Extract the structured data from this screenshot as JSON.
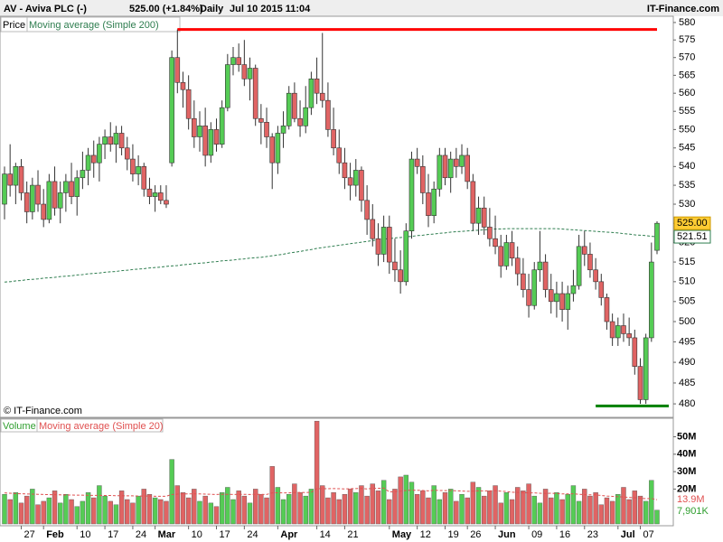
{
  "chart_data": [
    {
      "type": "candlestick",
      "title": "AV - Aviva PLC (-)",
      "quote": "525.00 (+1.84%)",
      "period": "Daily",
      "timestamp": "Jul 10 2015 11:04",
      "source": "IT-Finance.com",
      "copyright": "© IT-Finance.com",
      "price_name": "Price",
      "open": [
        530,
        538,
        535,
        540,
        533,
        528,
        535,
        530,
        526,
        536,
        529,
        533,
        536,
        532,
        537,
        539,
        543,
        541,
        546,
        548,
        546,
        549,
        545,
        542,
        538,
        540,
        534,
        532,
        533,
        531,
        541,
        570,
        563,
        561,
        553,
        548,
        551,
        543,
        550,
        546,
        556,
        568,
        570,
        568,
        564,
        567,
        553,
        552,
        548,
        541,
        549,
        551,
        560,
        553,
        551,
        556,
        564,
        560,
        558,
        550,
        545,
        541,
        537,
        535,
        539,
        531,
        526,
        521,
        517,
        524,
        515,
        513,
        510,
        523,
        542,
        540,
        533,
        527,
        534,
        543,
        537,
        542,
        540,
        543,
        536,
        525,
        529,
        524,
        521,
        519,
        514,
        520,
        516,
        512,
        508,
        504,
        513,
        515,
        508,
        505,
        507,
        503,
        507,
        509,
        519,
        517,
        513,
        510,
        506,
        500,
        496,
        499,
        497,
        496,
        489,
        481,
        496,
        518
      ],
      "high": [
        540,
        546,
        541,
        542,
        536,
        537,
        539,
        534,
        538,
        540,
        536,
        538,
        541,
        539,
        544,
        545,
        547,
        548,
        550,
        552,
        551,
        551,
        548,
        546,
        543,
        541,
        537,
        535,
        535,
        535,
        572,
        578,
        566,
        565,
        558,
        555,
        556,
        552,
        553,
        558,
        571,
        573,
        574,
        575,
        570,
        568,
        557,
        556,
        549,
        551,
        555,
        562,
        563,
        558,
        562,
        566,
        570,
        577,
        563,
        556,
        550,
        545,
        541,
        542,
        540,
        535,
        530,
        525,
        527,
        527,
        521,
        518,
        525,
        544,
        545,
        543,
        538,
        536,
        545,
        545,
        544,
        545,
        546,
        545,
        538,
        532,
        532,
        529,
        527,
        522,
        522,
        523,
        519,
        516,
        512,
        515,
        523,
        517,
        512,
        510,
        510,
        509,
        513,
        522,
        523,
        520,
        516,
        512,
        507,
        502,
        501,
        502,
        501,
        498,
        491,
        497,
        520,
        525.5
      ],
      "low": [
        526,
        532,
        530,
        531,
        525,
        526,
        528,
        524,
        525,
        527,
        525,
        528,
        530,
        527,
        534,
        535,
        537,
        536,
        542,
        544,
        541,
        543,
        539,
        536,
        535,
        532,
        530,
        528,
        530,
        529,
        540,
        560,
        556,
        550,
        545,
        544,
        540,
        541,
        544,
        545,
        555,
        565,
        566,
        562,
        558,
        551,
        546,
        545,
        534,
        538,
        545,
        550,
        552,
        548,
        549,
        554,
        557,
        556,
        548,
        543,
        538,
        534,
        531,
        532,
        528,
        522,
        519,
        514,
        515,
        512,
        510,
        507,
        509,
        521,
        538,
        530,
        524,
        525,
        532,
        535,
        533,
        537,
        538,
        534,
        523,
        522,
        522,
        519,
        517,
        511,
        513,
        514,
        509,
        506,
        501,
        503,
        510,
        506,
        502,
        501,
        500,
        498,
        505,
        508,
        514,
        511,
        508,
        504,
        498,
        494,
        494,
        495,
        494,
        487,
        480,
        480,
        495,
        517
      ],
      "close": [
        538,
        535,
        540,
        533,
        528,
        535,
        530,
        526,
        536,
        529,
        533,
        536,
        532,
        537,
        539,
        543,
        541,
        546,
        548,
        546,
        549,
        545,
        542,
        538,
        540,
        534,
        532,
        533,
        531,
        530,
        570,
        563,
        561,
        553,
        548,
        551,
        543,
        550,
        546,
        556,
        568,
        570,
        568,
        564,
        567,
        553,
        552,
        548,
        541,
        549,
        551,
        560,
        553,
        551,
        556,
        564,
        560,
        558,
        550,
        545,
        541,
        537,
        535,
        539,
        531,
        526,
        521,
        517,
        524,
        515,
        513,
        510,
        523,
        542,
        540,
        533,
        527,
        534,
        543,
        537,
        542,
        540,
        543,
        536,
        525,
        529,
        524,
        521,
        519,
        514,
        520,
        516,
        512,
        508,
        504,
        513,
        515,
        508,
        505,
        507,
        503,
        507,
        509,
        519,
        517,
        513,
        510,
        506,
        500,
        496,
        499,
        497,
        496,
        489,
        481,
        496,
        515,
        525
      ],
      "up_color": "#55cc55",
      "down_color": "#e06464",
      "last_label": "525.00",
      "ylim": [
        476.8,
        581.8
      ],
      "log_scale": true,
      "yticks": [
        480,
        485,
        490,
        495,
        500,
        505,
        510,
        515,
        520,
        525,
        530,
        535,
        540,
        545,
        550,
        555,
        560,
        565,
        570,
        575,
        580
      ],
      "series": [
        {
          "name": "Moving average (Simple 200)",
          "color": "#2e7d4f",
          "value_label": "521.51",
          "values": [
            509.9,
            510.0,
            510.2,
            510.3,
            510.5,
            510.6,
            510.7,
            510.9,
            511.0,
            511.1,
            511.3,
            511.4,
            511.5,
            511.7,
            511.8,
            512.0,
            512.1,
            512.2,
            512.4,
            512.5,
            512.6,
            512.8,
            512.9,
            513.1,
            513.2,
            513.3,
            513.5,
            513.6,
            513.7,
            513.9,
            514.0,
            514.1,
            514.3,
            514.4,
            514.6,
            514.7,
            514.8,
            515.0,
            515.1,
            515.3,
            515.4,
            515.5,
            515.7,
            515.8,
            516.0,
            516.1,
            516.2,
            516.4,
            516.6,
            516.8,
            517.0,
            517.3,
            517.5,
            517.7,
            518.0,
            518.2,
            518.5,
            518.7,
            518.9,
            519.1,
            519.3,
            519.5,
            519.7,
            519.9,
            520.1,
            520.3,
            520.5,
            520.7,
            520.9,
            521.0,
            521.2,
            521.3,
            521.5,
            521.6,
            521.8,
            521.9,
            522.1,
            522.2,
            522.4,
            522.5,
            522.7,
            522.8,
            522.9,
            523.0,
            523.1,
            523.2,
            523.3,
            523.4,
            523.5,
            523.5,
            523.6,
            523.6,
            523.6,
            523.6,
            523.6,
            523.6,
            523.6,
            523.6,
            523.6,
            523.6,
            523.5,
            523.4,
            523.3,
            523.2,
            523.1,
            523.0,
            522.9,
            522.8,
            522.7,
            522.6,
            522.5,
            522.3,
            522.2,
            522.0,
            521.9,
            521.8,
            521.6,
            521.51
          ]
        }
      ],
      "hlines": [
        {
          "value": 578,
          "color": "#ff0000",
          "from": 31
        },
        {
          "value": 479.5,
          "color": "#008000",
          "from": 106
        }
      ]
    },
    {
      "type": "bar",
      "volume_name": "Volume",
      "volume_color": "#2e9e2e",
      "categories": [
        null,
        null,
        null,
        "27",
        null,
        null,
        null,
        "Feb",
        null,
        null,
        null,
        null,
        null,
        "10",
        null,
        null,
        null,
        null,
        "17",
        null,
        null,
        null,
        null,
        "24",
        null,
        null,
        null,
        "Mar",
        null,
        null,
        null,
        null,
        null,
        "10",
        null,
        null,
        null,
        null,
        "17",
        null,
        null,
        null,
        null,
        "24",
        null,
        null,
        null,
        null,
        null,
        "Apr",
        null,
        null,
        null,
        null,
        null,
        null,
        "14",
        null,
        null,
        null,
        null,
        "21",
        null,
        null,
        null,
        null,
        null,
        null,
        null,
        "May",
        null,
        null,
        null,
        null,
        "12",
        null,
        null,
        null,
        null,
        "19",
        null,
        null,
        null,
        "26",
        null,
        null,
        null,
        null,
        "Jun",
        null,
        null,
        null,
        null,
        null,
        "09",
        null,
        null,
        null,
        null,
        "16",
        null,
        null,
        null,
        null,
        "23",
        null,
        null,
        null,
        null,
        null,
        "Jul",
        null,
        null,
        null,
        "07",
        null,
        null,
        null
      ],
      "values": [
        17,
        14,
        18,
        12,
        16,
        20,
        11,
        13,
        15,
        19,
        12,
        17,
        14,
        10,
        13,
        18,
        15,
        22,
        16,
        13,
        11,
        19,
        14,
        12,
        16,
        20,
        17,
        15,
        14,
        13,
        37,
        22,
        18,
        15,
        20,
        13,
        16,
        12,
        10,
        18,
        21,
        14,
        19,
        16,
        12,
        20,
        17,
        15,
        33,
        21,
        14,
        17,
        23,
        18,
        16,
        20,
        59,
        22,
        15,
        18,
        14,
        17,
        20,
        18,
        22,
        16,
        23,
        19,
        25,
        14,
        20,
        27,
        28,
        24,
        17,
        19,
        15,
        22,
        14,
        18,
        20,
        13,
        17,
        15,
        24,
        21,
        16,
        19,
        22,
        12,
        18,
        14,
        21,
        19,
        23,
        16,
        12,
        20,
        15,
        18,
        14,
        17,
        22,
        13,
        20,
        16,
        18,
        11,
        15,
        13,
        17,
        21,
        14,
        19,
        16,
        13,
        25,
        7.901
      ],
      "last_label": "7,901K",
      "ylim": [
        0,
        59.6
      ],
      "yticks": [
        {
          "value": 20,
          "label": "20M"
        },
        {
          "value": 30,
          "label": "30M"
        },
        {
          "value": 40,
          "label": "40M"
        },
        {
          "value": 50,
          "label": "50M"
        }
      ],
      "series": [
        {
          "name": "Moving average (Simple 20)",
          "color": "#e05050",
          "value_label": "13.9M",
          "values": [
            17.8,
            17.6,
            17.4,
            17.3,
            17.2,
            17.1,
            17.0,
            16.9,
            16.8,
            16.8,
            16.7,
            16.6,
            16.6,
            16.5,
            16.5,
            16.4,
            16.4,
            16.4,
            16.3,
            16.3,
            16.2,
            16.2,
            16.1,
            16.1,
            16.0,
            16.0,
            16.0,
            15.9,
            15.9,
            15.9,
            16.9,
            17.1,
            17.2,
            17.2,
            17.3,
            17.2,
            17.1,
            17.0,
            16.9,
            17.0,
            17.0,
            16.9,
            17.0,
            17.0,
            16.9,
            17.0,
            17.0,
            16.9,
            17.8,
            17.9,
            17.8,
            17.8,
            18.0,
            18.1,
            18.0,
            18.2,
            20.2,
            20.3,
            20.2,
            20.3,
            20.2,
            20.1,
            20.2,
            20.3,
            20.4,
            20.1,
            20.4,
            20.4,
            20.6,
            18.4,
            18.5,
            18.8,
            19.2,
            19.4,
            19.3,
            19.2,
            19.0,
            19.3,
            19.2,
            19.1,
            19.2,
            19.0,
            18.9,
            18.7,
            18.8,
            19.0,
            18.9,
            19.0,
            19.1,
            18.8,
            18.6,
            18.2,
            18.1,
            17.9,
            17.8,
            17.8,
            17.6,
            17.5,
            17.6,
            17.5,
            17.2,
            17.2,
            17.3,
            17.0,
            16.8,
            16.7,
            16.7,
            16.3,
            16.0,
            15.8,
            15.6,
            15.5,
            15.2,
            15.0,
            14.8,
            14.5,
            14.6,
            13.9
          ]
        }
      ]
    }
  ]
}
